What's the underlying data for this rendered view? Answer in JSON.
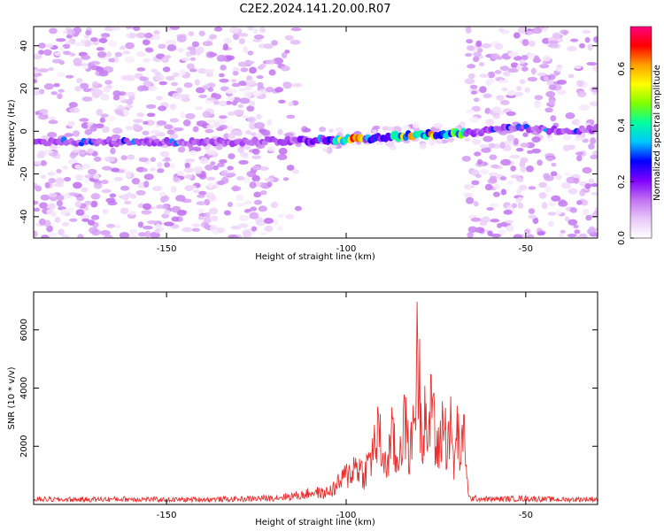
{
  "figure": {
    "title": "C2E2.2024.141.20.00.R07"
  },
  "chart_data": [
    {
      "type": "heatmap",
      "xlabel": "Height of straight line (km)",
      "ylabel": "Frequency (Hz)",
      "xlim": [
        -187,
        -30
      ],
      "ylim": [
        -50,
        49
      ],
      "xticks": [
        -150,
        -100,
        -50
      ],
      "xtick_labels": [
        "-150",
        "-100",
        "-50"
      ],
      "yticks": [
        -40,
        -20,
        0,
        20,
        40
      ],
      "ytick_labels": [
        "-40",
        "-20",
        "0",
        "20",
        "40"
      ],
      "colorbar": {
        "label": "Normalized spectral amplitude",
        "range": [
          0,
          0.75
        ],
        "ticks": [
          0.0,
          0.2,
          0.4,
          0.6
        ],
        "tick_labels": [
          "0.0",
          "0.2",
          "0.4",
          "0.6"
        ],
        "colormap": [
          "#ffffff",
          "#e8c8f8",
          "#c070f0",
          "#8000ff",
          "#0000ff",
          "#00c8ff",
          "#00ffa0",
          "#80ff00",
          "#ffff00",
          "#ffa000",
          "#ff0000",
          "#ff0080"
        ]
      },
      "empty_region_km": [
        -113,
        -67
      ],
      "signal_band": [
        {
          "x": -187,
          "y": -5
        },
        {
          "x": -160,
          "y": -5
        },
        {
          "x": -130,
          "y": -5
        },
        {
          "x": -110,
          "y": -4
        },
        {
          "x": -100,
          "y": -4
        },
        {
          "x": -90,
          "y": -3
        },
        {
          "x": -80,
          "y": -2
        },
        {
          "x": -70,
          "y": -1
        },
        {
          "x": -60,
          "y": 0
        },
        {
          "x": -55,
          "y": 2
        },
        {
          "x": -40,
          "y": 0
        },
        {
          "x": -30,
          "y": 1
        }
      ],
      "peak_amplitude": [
        {
          "x": -98,
          "value": 0.55
        },
        {
          "x": -82,
          "value": 0.6
        },
        {
          "x": -76,
          "value": 0.5
        },
        {
          "x": -72,
          "value": 0.45
        }
      ]
    },
    {
      "type": "line",
      "xlabel": "Height of straight line (km)",
      "ylabel": "SNR (10 * v/v)",
      "xlim": [
        -187,
        -30
      ],
      "ylim": [
        0,
        7300
      ],
      "xticks": [
        -150,
        -100,
        -50
      ],
      "xtick_labels": [
        "-150",
        "-100",
        "-50"
      ],
      "yticks": [
        2000,
        4000,
        6000
      ],
      "ytick_labels": [
        "2000",
        "4000",
        "6000"
      ],
      "series": [
        {
          "color": "#e83030",
          "x": [
            -187,
            -180,
            -170,
            -160,
            -150,
            -140,
            -130,
            -122,
            -118,
            -112,
            -109,
            -106,
            -103,
            -101,
            -99,
            -97,
            -95,
            -93,
            -91,
            -89,
            -87,
            -86,
            -84,
            -82,
            -81,
            -80,
            -79,
            -78,
            -77,
            -76,
            -75,
            -74,
            -73,
            -72,
            -71,
            -70,
            -69,
            -68,
            -67,
            -66,
            -60,
            -50,
            -40,
            -30
          ],
          "y": [
            250,
            230,
            240,
            260,
            220,
            240,
            250,
            300,
            350,
            450,
            600,
            500,
            800,
            1200,
            1500,
            1900,
            1400,
            2300,
            3300,
            1700,
            3300,
            1700,
            3900,
            2400,
            4800,
            7200,
            3500,
            4800,
            2500,
            6000,
            2200,
            2800,
            4000,
            3000,
            3700,
            1800,
            3500,
            2100,
            3600,
            300,
            250,
            280,
            230,
            260
          ]
        }
      ]
    }
  ]
}
